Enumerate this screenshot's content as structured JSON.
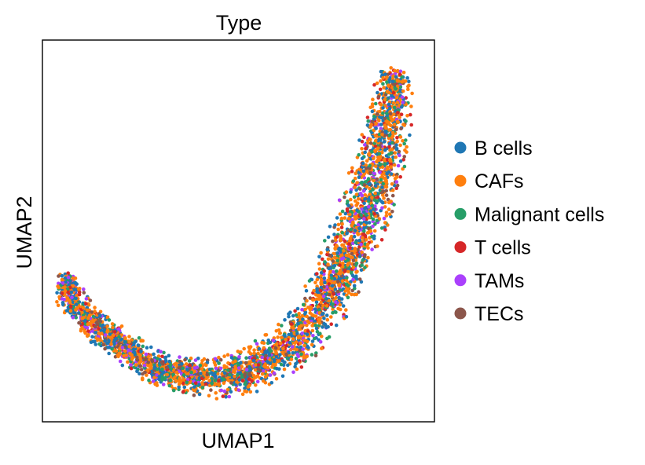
{
  "chart_data": {
    "type": "scatter",
    "title": "Type",
    "xlabel": "UMAP1",
    "ylabel": "UMAP2",
    "ticks": false,
    "grid": false,
    "legend_placement": "right",
    "legend": [
      {
        "label": "B cells",
        "color": "#1f77b4"
      },
      {
        "label": "CAFs",
        "color": "#ff7f0e"
      },
      {
        "label": "Malignant cells",
        "color": "#279e68"
      },
      {
        "label": "T cells",
        "color": "#d62728"
      },
      {
        "label": "TAMs",
        "color": "#aa40fc"
      },
      {
        "label": "TECs",
        "color": "#8c564b"
      }
    ],
    "category_weights": [
      0.23,
      0.4,
      0.12,
      0.08,
      0.09,
      0.08
    ],
    "embedding_path": [
      [
        0.7,
        35.0
      ],
      [
        1.5,
        31.5
      ],
      [
        5.0,
        27.0
      ],
      [
        10.0,
        23.5
      ],
      [
        16.0,
        20.0
      ],
      [
        22.0,
        16.5
      ],
      [
        30.0,
        14.5
      ],
      [
        38.0,
        14.0
      ],
      [
        46.0,
        15.5
      ],
      [
        54.0,
        19.0
      ],
      [
        60.0,
        24.0
      ],
      [
        66.0,
        31.0
      ],
      [
        70.0,
        38.5
      ],
      [
        74.0,
        47.0
      ],
      [
        77.5,
        56.0
      ],
      [
        80.5,
        66.0
      ],
      [
        82.5,
        77.0
      ]
    ],
    "embedding_halfwidth": [
      2.0,
      3.6,
      3.5,
      3.5,
      3.5,
      3.6,
      3.8,
      4.2,
      4.8,
      5.3,
      5.8,
      6.0,
      6.4,
      6.6,
      6.5,
      5.8,
      4.5
    ]
  }
}
